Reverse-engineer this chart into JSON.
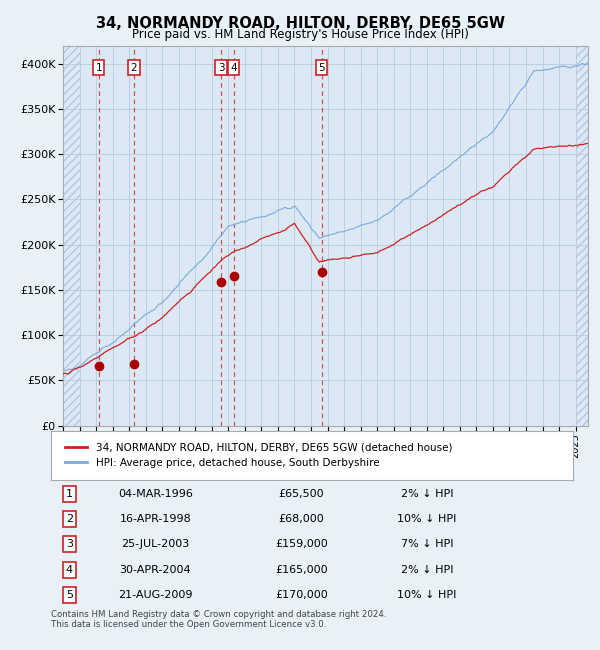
{
  "title": "34, NORMANDY ROAD, HILTON, DERBY, DE65 5GW",
  "subtitle": "Price paid vs. HM Land Registry's House Price Index (HPI)",
  "background_color": "#e8f0f8",
  "plot_bg_color": "#dce9f5",
  "grid_color": "#b8cce0",
  "hpi_color": "#7aaadd",
  "price_color": "#cc2222",
  "sale_marker_color": "#aa0000",
  "vline_color": "#cc3333",
  "ylim": [
    0,
    420000
  ],
  "yticks": [
    0,
    50000,
    100000,
    150000,
    200000,
    250000,
    300000,
    350000,
    400000
  ],
  "ytick_labels": [
    "£0",
    "£50K",
    "£100K",
    "£150K",
    "£200K",
    "£250K",
    "£300K",
    "£350K",
    "£400K"
  ],
  "xmin": 1994.0,
  "xmax": 2025.75,
  "sale_dates_x": [
    1996.17,
    1998.29,
    2003.56,
    2004.33,
    2009.64
  ],
  "sale_prices_y": [
    65500,
    68000,
    159000,
    165000,
    170000
  ],
  "sale_labels": [
    "1",
    "2",
    "3",
    "4",
    "5"
  ],
  "legend_label_price": "34, NORMANDY ROAD, HILTON, DERBY, DE65 5GW (detached house)",
  "legend_label_hpi": "HPI: Average price, detached house, South Derbyshire",
  "table_data": [
    [
      "1",
      "04-MAR-1996",
      "£65,500",
      "2% ↓ HPI"
    ],
    [
      "2",
      "16-APR-1998",
      "£68,000",
      "10% ↓ HPI"
    ],
    [
      "3",
      "25-JUL-2003",
      "£159,000",
      "7% ↓ HPI"
    ],
    [
      "4",
      "30-APR-2004",
      "£165,000",
      "2% ↓ HPI"
    ],
    [
      "5",
      "21-AUG-2009",
      "£170,000",
      "10% ↓ HPI"
    ]
  ],
  "footnote": "Contains HM Land Registry data © Crown copyright and database right 2024.\nThis data is licensed under the Open Government Licence v3.0."
}
